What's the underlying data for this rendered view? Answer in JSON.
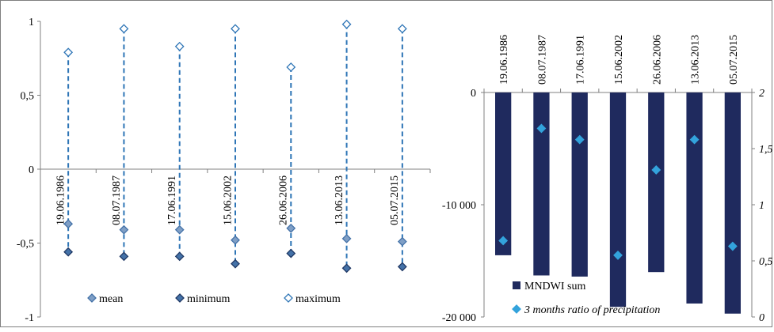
{
  "colors": {
    "series_line": "#2e75b6",
    "marker_dark": "#4472a8",
    "marker_light": "#ffffff",
    "bar": "#1f2a5e",
    "precip_marker": "#33a3dc",
    "axis": "#808080"
  },
  "chart_data": [
    {
      "type": "scatter",
      "categories": [
        "19.06.1986",
        "08.07.1987",
        "17.06.1991",
        "15.06.2002",
        "26.06.2006",
        "13.06.2013",
        "05.07.2015"
      ],
      "ylim": [
        -1,
        1
      ],
      "y_ticks": [
        {
          "v": 1,
          "label": "1"
        },
        {
          "v": 0.5,
          "label": "0,5"
        },
        {
          "v": 0,
          "label": "0"
        },
        {
          "v": -0.5,
          "label": "-0,5"
        },
        {
          "v": -1,
          "label": "-1"
        }
      ],
      "series": [
        {
          "name": "mean",
          "values": [
            -0.37,
            -0.41,
            -0.41,
            -0.48,
            -0.4,
            -0.47,
            -0.49
          ]
        },
        {
          "name": "minimum",
          "values": [
            -0.56,
            -0.59,
            -0.59,
            -0.64,
            -0.57,
            -0.67,
            -0.66
          ]
        },
        {
          "name": "maximum",
          "values": [
            0.79,
            0.95,
            0.83,
            0.95,
            0.69,
            0.98,
            0.95
          ]
        }
      ],
      "legend": [
        "mean",
        "minimum",
        "maximum"
      ],
      "legend_position": "bottom",
      "grid": false
    },
    {
      "type": "bar",
      "categories": [
        "19.06.1986",
        "08.07.1987",
        "17.06.1991",
        "15.06.2002",
        "26.06.2006",
        "13.06.2013",
        "05.07.2015"
      ],
      "ylim": [
        -20000,
        0
      ],
      "y_ticks": [
        {
          "v": 0,
          "label": "0"
        },
        {
          "v": -10000,
          "label": "-10 000"
        },
        {
          "v": -20000,
          "label": "-20 000"
        }
      ],
      "y2lim": [
        0,
        2
      ],
      "y2_ticks": [
        {
          "v": 2,
          "label": "2"
        },
        {
          "v": 1.5,
          "label": "1,5"
        },
        {
          "v": 1,
          "label": "1"
        },
        {
          "v": 0.5,
          "label": "0,5"
        },
        {
          "v": 0,
          "label": "0"
        }
      ],
      "series": [
        {
          "name": "MNDWI sum",
          "axis": "left",
          "values": [
            -14500,
            -16300,
            -16400,
            -19100,
            -16000,
            -18800,
            -19700
          ]
        },
        {
          "name": "3 months ratio of precipitation",
          "axis": "right",
          "values": [
            0.68,
            1.68,
            1.58,
            0.55,
            1.31,
            1.58,
            0.63
          ]
        }
      ],
      "legend": [
        "MNDWI sum",
        "3 months ratio of precipitation"
      ],
      "legend_position": "bottom",
      "grid": false
    }
  ]
}
